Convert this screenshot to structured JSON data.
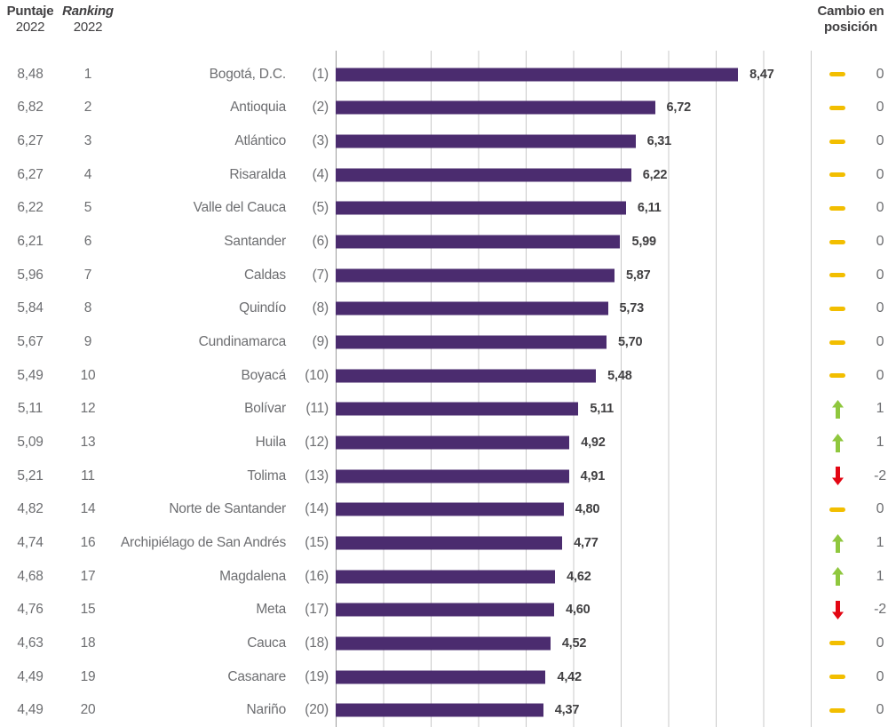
{
  "header": {
    "score_label": "Puntaje",
    "score_year": "2022",
    "ranking_label": "Ranking",
    "ranking_year": "2022",
    "change_label_line1": "Cambio en",
    "change_label_line2": "posición"
  },
  "colors": {
    "bar": "#4B2C6F",
    "gridline": "#c8c8c8",
    "axis": "#9b9b9b",
    "text_gray": "#6d6e71",
    "text_dark": "#414042",
    "change_same": "#F2BE00",
    "change_up": "#8FC73E",
    "change_down": "#E30613"
  },
  "chart_data": {
    "type": "bar",
    "orientation": "horizontal",
    "xlim": [
      0,
      10
    ],
    "gridline_interval": 1,
    "grid": true,
    "value_decimal_separator": "comma",
    "rows": [
      {
        "score_2022": "8,48",
        "ranking_2022": "1",
        "name": "Bogotá, D.C.",
        "rank_label": "(1)",
        "value": 8.47,
        "value_label": "8,47",
        "change": "0",
        "change_dir": "same"
      },
      {
        "score_2022": "6,82",
        "ranking_2022": "2",
        "name": "Antioquia",
        "rank_label": "(2)",
        "value": 6.72,
        "value_label": "6,72",
        "change": "0",
        "change_dir": "same"
      },
      {
        "score_2022": "6,27",
        "ranking_2022": "3",
        "name": "Atlántico",
        "rank_label": "(3)",
        "value": 6.31,
        "value_label": "6,31",
        "change": "0",
        "change_dir": "same"
      },
      {
        "score_2022": "6,27",
        "ranking_2022": "4",
        "name": "Risaralda",
        "rank_label": "(4)",
        "value": 6.22,
        "value_label": "6,22",
        "change": "0",
        "change_dir": "same"
      },
      {
        "score_2022": "6,22",
        "ranking_2022": "5",
        "name": "Valle del Cauca",
        "rank_label": "(5)",
        "value": 6.11,
        "value_label": "6,11",
        "change": "0",
        "change_dir": "same"
      },
      {
        "score_2022": "6,21",
        "ranking_2022": "6",
        "name": "Santander",
        "rank_label": "(6)",
        "value": 5.99,
        "value_label": "5,99",
        "change": "0",
        "change_dir": "same"
      },
      {
        "score_2022": "5,96",
        "ranking_2022": "7",
        "name": "Caldas",
        "rank_label": "(7)",
        "value": 5.87,
        "value_label": "5,87",
        "change": "0",
        "change_dir": "same"
      },
      {
        "score_2022": "5,84",
        "ranking_2022": "8",
        "name": "Quindío",
        "rank_label": "(8)",
        "value": 5.73,
        "value_label": "5,73",
        "change": "0",
        "change_dir": "same"
      },
      {
        "score_2022": "5,67",
        "ranking_2022": "9",
        "name": "Cundinamarca",
        "rank_label": "(9)",
        "value": 5.7,
        "value_label": "5,70",
        "change": "0",
        "change_dir": "same"
      },
      {
        "score_2022": "5,49",
        "ranking_2022": "10",
        "name": "Boyacá",
        "rank_label": "(10)",
        "value": 5.48,
        "value_label": "5,48",
        "change": "0",
        "change_dir": "same"
      },
      {
        "score_2022": "5,11",
        "ranking_2022": "12",
        "name": "Bolívar",
        "rank_label": "(11)",
        "value": 5.11,
        "value_label": "5,11",
        "change": "1",
        "change_dir": "up"
      },
      {
        "score_2022": "5,09",
        "ranking_2022": "13",
        "name": "Huila",
        "rank_label": "(12)",
        "value": 4.92,
        "value_label": "4,92",
        "change": "1",
        "change_dir": "up"
      },
      {
        "score_2022": "5,21",
        "ranking_2022": "11",
        "name": "Tolima",
        "rank_label": "(13)",
        "value": 4.91,
        "value_label": "4,91",
        "change": "-2",
        "change_dir": "down"
      },
      {
        "score_2022": "4,82",
        "ranking_2022": "14",
        "name": "Norte de Santander",
        "rank_label": "(14)",
        "value": 4.8,
        "value_label": "4,80",
        "change": "0",
        "change_dir": "same"
      },
      {
        "score_2022": "4,74",
        "ranking_2022": "16",
        "name": "Archipiélago de San Andrés",
        "rank_label": "(15)",
        "value": 4.77,
        "value_label": "4,77",
        "change": "1",
        "change_dir": "up"
      },
      {
        "score_2022": "4,68",
        "ranking_2022": "17",
        "name": "Magdalena",
        "rank_label": "(16)",
        "value": 4.62,
        "value_label": "4,62",
        "change": "1",
        "change_dir": "up"
      },
      {
        "score_2022": "4,76",
        "ranking_2022": "15",
        "name": "Meta",
        "rank_label": "(17)",
        "value": 4.6,
        "value_label": "4,60",
        "change": "-2",
        "change_dir": "down"
      },
      {
        "score_2022": "4,63",
        "ranking_2022": "18",
        "name": "Cauca",
        "rank_label": "(18)",
        "value": 4.52,
        "value_label": "4,52",
        "change": "0",
        "change_dir": "same"
      },
      {
        "score_2022": "4,49",
        "ranking_2022": "19",
        "name": "Casanare",
        "rank_label": "(19)",
        "value": 4.42,
        "value_label": "4,42",
        "change": "0",
        "change_dir": "same"
      },
      {
        "score_2022": "4,49",
        "ranking_2022": "20",
        "name": "Nariño",
        "rank_label": "(20)",
        "value": 4.37,
        "value_label": "4,37",
        "change": "0",
        "change_dir": "same"
      }
    ]
  }
}
